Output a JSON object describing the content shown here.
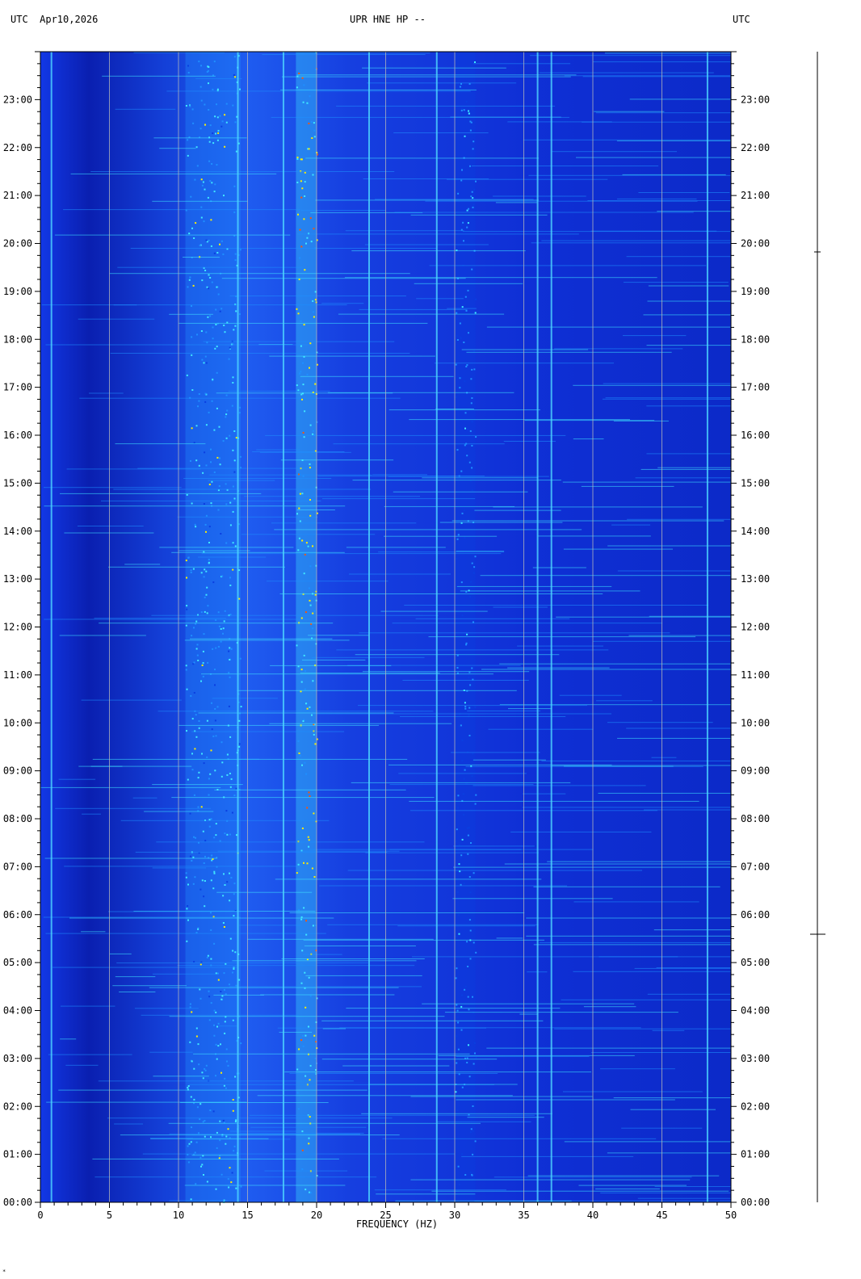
{
  "header": {
    "left": "UTC  Apr10,2026",
    "center": "UPR HNE HP --",
    "right": "UTC"
  },
  "footer_mark": "*",
  "chart_data": {
    "type": "heatmap",
    "title": "UPR HNE HP --",
    "date": "Apr10,2026",
    "timezone_left": "UTC",
    "timezone_right": "UTC",
    "xlabel": "FREQUENCY (HZ)",
    "ylabel": "",
    "xlim": [
      0,
      50
    ],
    "ylim": [
      "00:00",
      "24:00"
    ],
    "x_ticks": [
      "0",
      "5",
      "10",
      "15",
      "20",
      "25",
      "30",
      "35",
      "40",
      "45",
      "50"
    ],
    "y_ticks": [
      "00:00",
      "01:00",
      "02:00",
      "03:00",
      "04:00",
      "05:00",
      "06:00",
      "07:00",
      "08:00",
      "09:00",
      "10:00",
      "11:00",
      "12:00",
      "13:00",
      "14:00",
      "15:00",
      "16:00",
      "17:00",
      "18:00",
      "19:00",
      "20:00",
      "21:00",
      "22:00",
      "23:00"
    ],
    "grid": true,
    "colormap": [
      "#001a9e",
      "#0a3fe0",
      "#1f8fff",
      "#3fe8ff",
      "#ffee00",
      "#ff5500",
      "#c80000"
    ],
    "background_color": "#0a2fd0",
    "narrow_band_lines_hz": [
      0.8,
      14.3,
      17.6,
      23.8,
      28.7,
      36.0,
      37.0,
      48.3
    ],
    "activity_bands_hz": [
      {
        "from": 10.5,
        "to": 14.5,
        "level": 0.55
      },
      {
        "from": 18.5,
        "to": 20.0,
        "level": 0.75
      },
      {
        "from": 30.0,
        "to": 31.5,
        "level": 0.4
      }
    ]
  }
}
